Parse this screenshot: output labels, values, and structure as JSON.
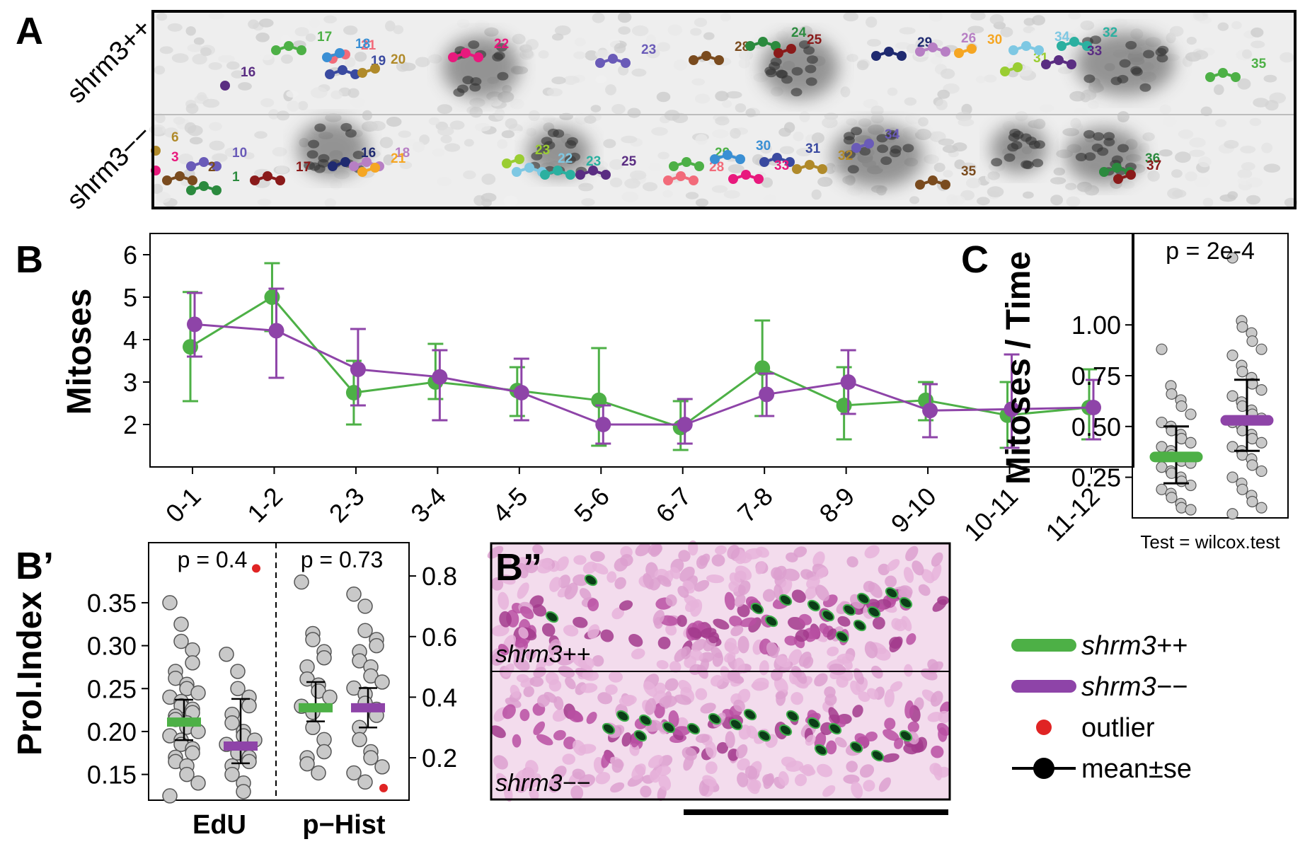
{
  "colors": {
    "wt": "#4db046",
    "mut": "#8e44a8",
    "outlier": "#e02424",
    "point_fill": "#c9c9c9",
    "point_stroke": "#555555",
    "se": "#000000"
  },
  "panel_A": {
    "letter": "A",
    "row_labels": [
      "shrm3++",
      "shrm3−−"
    ],
    "track_labels_top": [
      "16",
      "17",
      "21",
      "18",
      "19",
      "20",
      "22",
      "23",
      "28",
      "24",
      "25",
      "29",
      "26",
      "30",
      "31",
      "34",
      "32",
      "33",
      "35"
    ],
    "track_labels_bottom": [
      "6",
      "3",
      "10",
      "2",
      "1",
      "17",
      "16",
      "18",
      "21",
      "23",
      "22",
      "23",
      "25",
      "29",
      "28",
      "30",
      "31",
      "32",
      "33",
      "34",
      "35",
      "36",
      "37"
    ]
  },
  "panel_B": {
    "letter": "B",
    "chart_data": {
      "type": "line",
      "ylabel": "Mitoses",
      "xlabel": "",
      "categories": [
        "0-1",
        "1-2",
        "2-3",
        "3-4",
        "4-5",
        "5-6",
        "6-7",
        "7-8",
        "8-9",
        "9-10",
        "10-11",
        "11-12"
      ],
      "ylim": [
        1,
        6.5
      ],
      "yticks": [
        2,
        3,
        4,
        5,
        6
      ],
      "series": [
        {
          "name": "shrm3++",
          "color": "#4db046",
          "values": [
            3.83,
            5.0,
            2.75,
            3.0,
            2.8,
            2.57,
            1.93,
            3.33,
            2.45,
            2.57,
            2.22,
            2.4
          ],
          "lower": [
            2.55,
            4.2,
            2.0,
            2.6,
            2.2,
            1.5,
            1.4,
            2.2,
            1.65,
            2.1,
            1.45,
            1.65
          ],
          "upper": [
            5.12,
            5.8,
            3.5,
            3.9,
            3.35,
            3.8,
            2.55,
            4.45,
            3.35,
            3.0,
            3.0,
            3.3
          ]
        },
        {
          "name": "shrm3−−",
          "color": "#8e44a8",
          "values": [
            4.36,
            4.21,
            3.3,
            3.12,
            2.75,
            2.0,
            2.0,
            2.71,
            3.0,
            2.33,
            2.36,
            2.4
          ],
          "lower": [
            3.6,
            3.1,
            2.45,
            2.1,
            2.1,
            1.55,
            1.55,
            2.2,
            2.25,
            1.7,
            1.45,
            1.65
          ],
          "upper": [
            5.1,
            5.2,
            4.25,
            3.75,
            3.55,
            2.45,
            2.6,
            3.2,
            3.75,
            2.95,
            3.65,
            3.05
          ]
        }
      ]
    }
  },
  "panel_Bp": {
    "letter": "B’",
    "chart_data": {
      "type": "scatter",
      "ylabel": "Prol.Index",
      "left_yticks": [
        0.15,
        0.2,
        0.25,
        0.3,
        0.35
      ],
      "left_ylim": [
        0.12,
        0.42
      ],
      "right_yticks": [
        0.2,
        0.4,
        0.6,
        0.8
      ],
      "right_ylim": [
        0.06,
        0.91
      ],
      "group_labels": [
        "EdU",
        "p−Hist"
      ],
      "p_values": [
        "p = 0.4",
        "p = 0.73"
      ],
      "groups": [
        {
          "assay": "EdU",
          "genotype": "shrm3++",
          "mean": 0.211,
          "se_low": 0.19,
          "se_high": 0.237,
          "points": [
            0.35,
            0.325,
            0.305,
            0.295,
            0.28,
            0.27,
            0.262,
            0.255,
            0.25,
            0.245,
            0.24,
            0.235,
            0.23,
            0.226,
            0.222,
            0.218,
            0.214,
            0.21,
            0.205,
            0.2,
            0.195,
            0.19,
            0.185,
            0.18,
            0.175,
            0.17,
            0.165,
            0.16,
            0.15,
            0.14,
            0.125
          ]
        },
        {
          "assay": "EdU",
          "genotype": "shrm3−−",
          "mean": 0.183,
          "se_low": 0.163,
          "se_high": 0.238,
          "points": [
            0.29,
            0.27,
            0.25,
            0.24,
            0.23,
            0.22,
            0.21,
            0.2,
            0.195,
            0.19,
            0.185,
            0.18,
            0.175,
            0.17,
            0.165,
            0.16,
            0.15,
            0.14,
            0.13
          ],
          "outliers": [
            0.39
          ]
        },
        {
          "assay": "p−Hist",
          "genotype": "shrm3++",
          "mean": 0.365,
          "se_low": 0.32,
          "se_high": 0.45,
          "points": [
            0.78,
            0.61,
            0.59,
            0.55,
            0.53,
            0.5,
            0.46,
            0.44,
            0.42,
            0.4,
            0.37,
            0.35,
            0.3,
            0.26,
            0.22,
            0.2,
            0.18,
            0.15
          ]
        },
        {
          "assay": "p−Hist",
          "genotype": "shrm3−−",
          "mean": 0.365,
          "se_low": 0.3,
          "se_high": 0.43,
          "points": [
            0.74,
            0.7,
            0.62,
            0.59,
            0.57,
            0.55,
            0.52,
            0.5,
            0.47,
            0.45,
            0.43,
            0.41,
            0.38,
            0.36,
            0.34,
            0.3,
            0.26,
            0.22,
            0.2,
            0.17,
            0.15,
            0.12
          ],
          "outliers": [
            0.1
          ]
        }
      ]
    }
  },
  "panel_Bpp": {
    "letter": "B”",
    "labels": [
      "shrm3++",
      "shrm3−−"
    ]
  },
  "panel_C": {
    "letter": "C",
    "chart_data": {
      "type": "scatter",
      "ylabel": "Mitoses / Time",
      "yticks": [
        0.25,
        0.5,
        0.75,
        1.0
      ],
      "ytick_labels": [
        "0.25",
        "0.50",
        "0.75",
        "1.00"
      ],
      "ylim": [
        0.05,
        1.45
      ],
      "p_value": "p = 2e-4",
      "test_label": "Test = wilcox.test",
      "groups": [
        {
          "genotype": "shrm3++",
          "mean": 0.35,
          "se_low": 0.22,
          "se_high": 0.5,
          "points": [
            0.88,
            0.7,
            0.66,
            0.63,
            0.6,
            0.56,
            0.52,
            0.5,
            0.48,
            0.46,
            0.44,
            0.42,
            0.4,
            0.38,
            0.36,
            0.34,
            0.33,
            0.32,
            0.3,
            0.28,
            0.27,
            0.25,
            0.23,
            0.21,
            0.19,
            0.17,
            0.15,
            0.12,
            0.1,
            0.09
          ]
        },
        {
          "genotype": "shrm3−−",
          "mean": 0.53,
          "se_low": 0.38,
          "se_high": 0.73,
          "points": [
            1.33,
            1.02,
            0.99,
            0.96,
            0.92,
            0.88,
            0.85,
            0.8,
            0.77,
            0.74,
            0.71,
            0.68,
            0.65,
            0.62,
            0.6,
            0.58,
            0.56,
            0.54,
            0.52,
            0.5,
            0.48,
            0.46,
            0.44,
            0.42,
            0.4,
            0.38,
            0.36,
            0.34,
            0.31,
            0.28,
            0.25,
            0.22,
            0.19,
            0.16,
            0.13,
            0.1,
            0.07
          ]
        }
      ]
    }
  },
  "legend": {
    "items": [
      {
        "label": "shrm3++",
        "kind": "wt"
      },
      {
        "label": "shrm3−−",
        "kind": "mut"
      },
      {
        "label": "outlier",
        "kind": "outlier"
      },
      {
        "label": "mean±se",
        "kind": "meanse"
      }
    ]
  }
}
